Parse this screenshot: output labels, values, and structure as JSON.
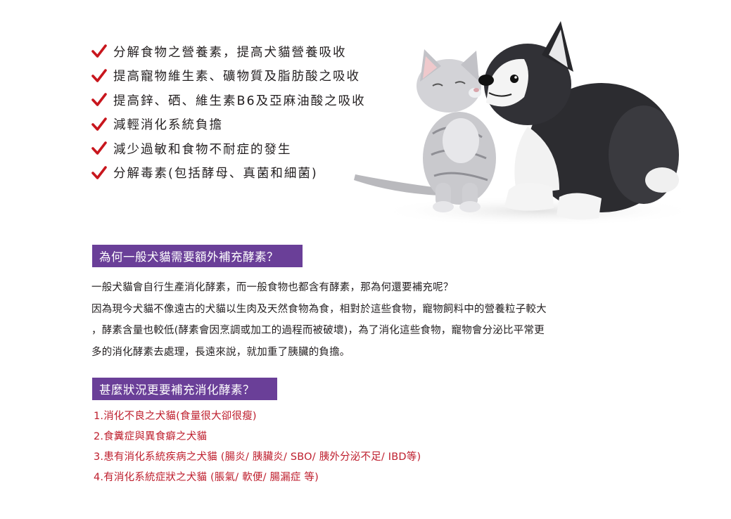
{
  "benefits": [
    "分解食物之營養素，提高犬貓營養吸收",
    "提高寵物維生素、礦物質及脂肪酸之吸收",
    "提高鋅、硒、維生素B6及亞麻油酸之吸收",
    "減輕消化系統負擔",
    "減少過敏和食物不耐症的發生",
    "分解毒素(包括酵母、真菌和細菌)"
  ],
  "sections": {
    "why": {
      "heading": "為何一般犬貓需要額外補充酵素？",
      "lines": [
        "一般犬貓會自行生產消化酵素，而一般食物也都含有酵素，那為何還要補充呢？",
        "因為現今犬貓不像遠古的犬貓以生肉及天然食物為食，相對於這些食物，寵物飼料中的營養粒子較大",
        "，酵素含量也較低(酵素會因烹調或加工的過程而被破壞)，為了消化這些食物，寵物會分泌比平常更",
        "多的消化酵素去處理，長遠來說，就加重了胰臟的負擔。"
      ]
    },
    "when": {
      "heading": "甚麼狀況更要補充消化酵素？",
      "items": [
        "1.消化不良之犬貓(食量很大卻很瘦)",
        "2.食糞症與異食癖之犬貓",
        "3.患有消化系統疾病之犬貓 (腸炎/ 胰臟炎/ SBO/ 胰外分泌不足/ IBD等)",
        "4.有消化系統症狀之犬貓 (脹氣/ 軟便/ 腸漏症 等)"
      ]
    }
  },
  "colors": {
    "check": "#c8161d",
    "heading_bg": "#6a3f98",
    "condition_text": "#be1e2d"
  },
  "icons": {
    "bullet": "checkmark-icon",
    "image": "kitten-and-puppy-photo"
  }
}
